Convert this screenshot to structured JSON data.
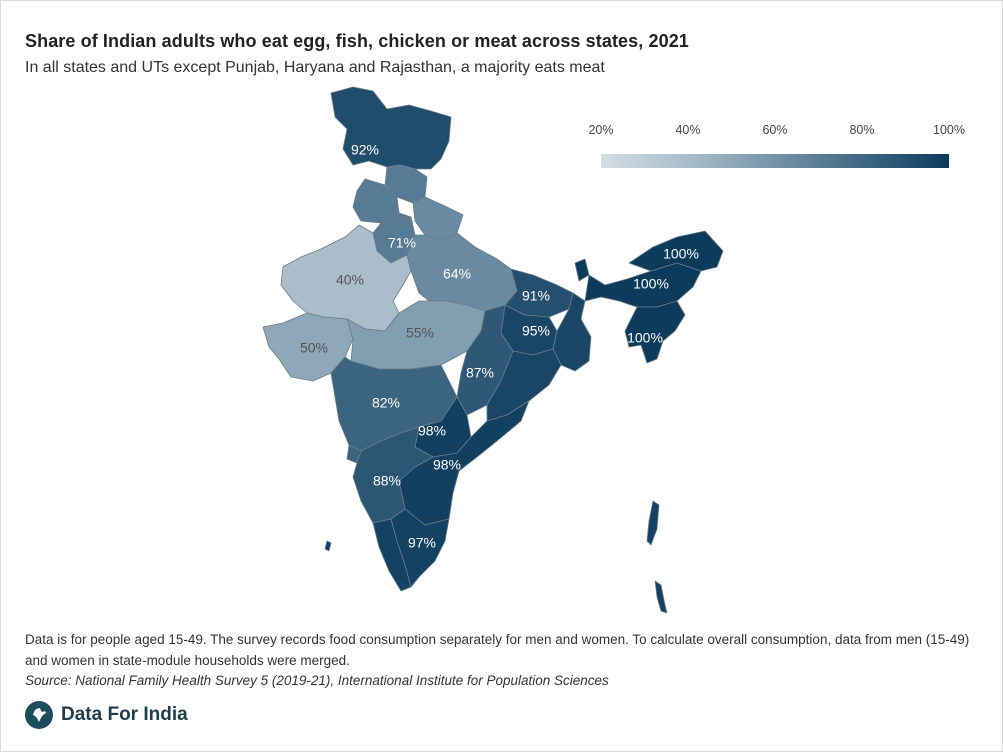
{
  "header": {
    "title": "Share of Indian adults who eat egg, fish, chicken or meat across states, 2021",
    "subtitle": "In all states and UTs except Punjab, Haryana and Rajasthan, a majority eats meat"
  },
  "legend": {
    "ticks": [
      "20%",
      "40%",
      "60%",
      "80%",
      "100%"
    ],
    "min_value": 20,
    "max_value": 100,
    "colors": {
      "low": "#d3dde4",
      "high": "#0d3b5c"
    }
  },
  "map": {
    "region_labels": [
      {
        "label": "92%",
        "value": 92
      },
      {
        "label": "71%",
        "value": 71
      },
      {
        "label": "40%",
        "value": 40
      },
      {
        "label": "64%",
        "value": 64
      },
      {
        "label": "91%",
        "value": 91
      },
      {
        "label": "100%",
        "value": 100
      },
      {
        "label": "100%",
        "value": 100
      },
      {
        "label": "100%",
        "value": 100
      },
      {
        "label": "95%",
        "value": 95
      },
      {
        "label": "50%",
        "value": 50
      },
      {
        "label": "55%",
        "value": 55
      },
      {
        "label": "87%",
        "value": 87
      },
      {
        "label": "82%",
        "value": 82
      },
      {
        "label": "98%",
        "value": 98
      },
      {
        "label": "98%",
        "value": 98
      },
      {
        "label": "88%",
        "value": 88
      },
      {
        "label": "97%",
        "value": 97
      }
    ]
  },
  "footer": {
    "note": "Data is for people aged 15-49. The survey records food consumption separately for men and women. To calculate overall consumption, data from men (15-49) and women in state-module households were merged.",
    "source": "Source: National Family Health Survey 5 (2019-21), International Institute for Population Sciences",
    "brand": "Data For India"
  }
}
